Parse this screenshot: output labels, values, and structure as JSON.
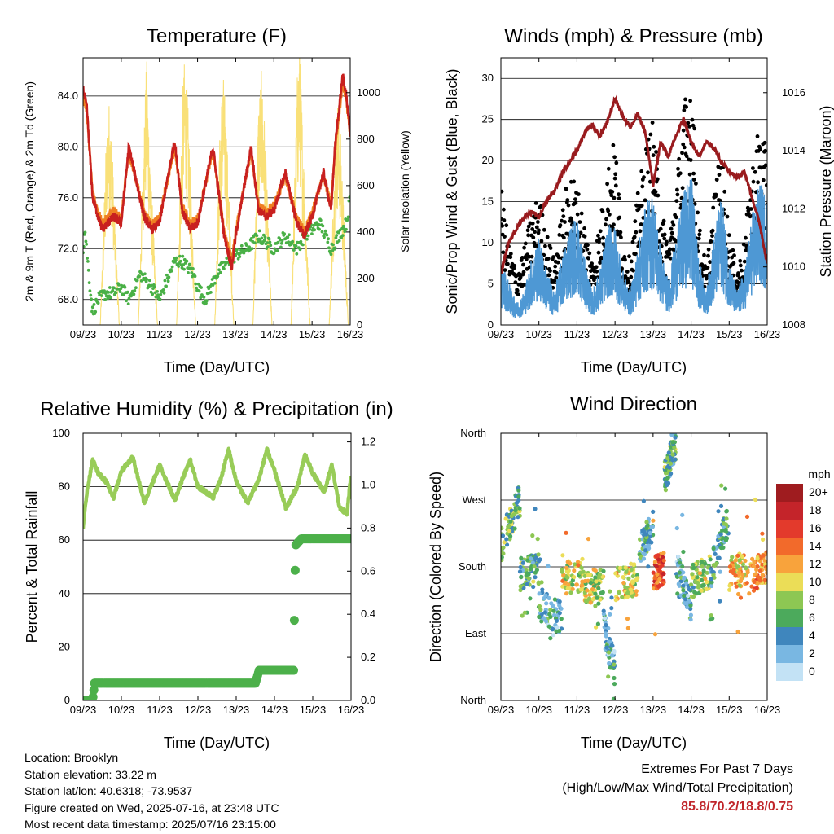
{
  "ticks_time": [
    "09/23",
    "10/23",
    "11/23",
    "12/23",
    "13/23",
    "14/23",
    "15/23",
    "16/23"
  ],
  "colors": {
    "t2m": "#c8201f",
    "t9m": "#ef7f22",
    "td": "#49b046",
    "sol": "#f9e078",
    "sonic": "#4e98d4",
    "gust": "#000000",
    "pres": "#991b1e",
    "rh": "#98cc58",
    "rain": "#4cb04a"
  },
  "panels": {
    "temp": {
      "title": "Temperature (F)",
      "ylabel": "2m & 9m T (Red, Orange) & 2m Td (Green)",
      "ylabel_right": "Solar Insolation (Yellow)",
      "xlabel": "Time (Day/UTC)",
      "yticks": [
        "68.0",
        "72.0",
        "76.0",
        "80.0",
        "84.0"
      ],
      "yticks_right": [
        "0",
        "200",
        "400",
        "600",
        "800",
        "1000"
      ]
    },
    "wind": {
      "title": "Winds (mph) & Pressure (mb)",
      "ylabel": "Sonic/Prop Wind & Gust (Blue, Black)",
      "ylabel_right": "Station Pressure (Maroon)",
      "xlabel": "Time (Day/UTC)",
      "yticks": [
        "0",
        "5",
        "10",
        "15",
        "20",
        "25",
        "30"
      ],
      "yticks_right": [
        "1008",
        "1010",
        "1012",
        "1014",
        "1016"
      ]
    },
    "rh": {
      "title": "Relative Humidity (%) & Precipitation (in)",
      "ylabel": "Percent & Total Rainfall",
      "xlabel": "Time (Day/UTC)",
      "yticks": [
        "0",
        "20",
        "40",
        "60",
        "80",
        "100"
      ],
      "yticks_right": [
        "0.0",
        "0.2",
        "0.4",
        "0.6",
        "0.8",
        "1.0",
        "1.2"
      ]
    },
    "dir": {
      "title": "Wind Direction",
      "ylabel": "Direction (Colored By Speed)",
      "xlabel": "Time (Day/UTC)",
      "yticks": [
        "North",
        "East",
        "South",
        "West",
        "North"
      ],
      "legend_title": "mph",
      "legend_labels": [
        "20+",
        "18",
        "16",
        "14",
        "12",
        "10",
        "8",
        "6",
        "4",
        "2",
        "0"
      ],
      "legend_colors": [
        "#9f1c1f",
        "#c4242a",
        "#e33a2c",
        "#f26a2b",
        "#f8a33c",
        "#ebdd57",
        "#8dc753",
        "#4caa5c",
        "#3f86bd",
        "#79b7e2",
        "#c3e2f5"
      ]
    }
  },
  "info": {
    "location": "Location: Brooklyn",
    "elevation": "Station elevation: 33.22 m",
    "latlon": "Station lat/lon: 40.6318; -73.9537",
    "created": "Figure created on Wed, 2025-07-16, at 23:48 UTC",
    "recent": "Most recent data timestamp: 2025/07/16 23:15:00"
  },
  "extremes": {
    "title": "Extremes For Past 7 Days",
    "subtitle": "(High/Low/Max Wind/Total Precipitation)",
    "values": "85.8/70.2/18.8/0.75"
  },
  "chart_data": [
    {
      "type": "line",
      "title": "Temperature (F)",
      "x_unit": "day since 09/23 00 UTC",
      "ylim": [
        66,
        87
      ],
      "ylim_right": [
        0,
        1150
      ],
      "series": [
        {
          "name": "2m T (Red)",
          "x": [
            0,
            0.1,
            0.25,
            0.5,
            0.8,
            1,
            1.2,
            1.6,
            1.8,
            2,
            2.4,
            2.6,
            2.8,
            3,
            3.4,
            3.7,
            3.9,
            4,
            4.4,
            4.6,
            4.8,
            5,
            5.3,
            5.6,
            5.8,
            6,
            6.3,
            6.5,
            6.6,
            6.8,
            6.9,
            7
          ],
          "y": [
            84.6,
            83,
            76,
            73.5,
            74.5,
            74,
            80,
            74.5,
            73.5,
            74,
            80.5,
            75,
            73.5,
            74,
            80,
            73,
            70.5,
            73,
            80,
            75,
            74.5,
            75,
            78,
            74,
            73,
            74.5,
            78,
            75,
            80,
            85.6,
            84,
            81
          ]
        },
        {
          "name": "9m T (Orange)",
          "x": [
            0,
            0.1,
            0.25,
            0.5,
            0.8,
            1,
            1.2,
            1.6,
            1.8,
            2,
            2.4,
            2.6,
            2.8,
            3,
            3.4,
            3.7,
            3.9,
            4,
            4.4,
            4.6,
            4.8,
            5,
            5.3,
            5.6,
            5.8,
            6,
            6.3,
            6.5,
            6.6,
            6.8,
            6.9,
            7
          ],
          "y": [
            84.3,
            82.7,
            76.3,
            74,
            75,
            74.4,
            79.6,
            74.9,
            73.9,
            74.4,
            80,
            75.4,
            73.9,
            74.4,
            79.6,
            73.4,
            71,
            73.4,
            79.6,
            75.4,
            74.9,
            75.4,
            77.7,
            74.4,
            73.4,
            74.9,
            77.7,
            75.4,
            79.6,
            85,
            83.6,
            80.7
          ]
        },
        {
          "name": "2m Td (Green)",
          "x": [
            0,
            0.05,
            0.15,
            0.25,
            0.4,
            0.6,
            0.8,
            1,
            1.2,
            1.5,
            1.8,
            2,
            2.4,
            2.6,
            2.9,
            3,
            3.2,
            3.5,
            3.8,
            4,
            4.3,
            4.6,
            5,
            5.3,
            5.6,
            5.8,
            6,
            6.2,
            6.5,
            6.7,
            6.9,
            7
          ],
          "y": [
            72,
            73.5,
            70,
            67,
            68,
            68.5,
            68.5,
            69,
            68,
            70,
            69,
            68,
            71,
            71,
            70,
            69,
            68,
            70,
            71,
            71.5,
            72,
            73,
            72,
            73,
            72,
            73,
            73.5,
            74,
            72,
            73,
            74,
            76
          ]
        },
        {
          "name": "Solar Insolation (Yellow)",
          "right_axis": true,
          "x": [
            0,
            0.45,
            0.6,
            0.67,
            0.75,
            0.95,
            1.45,
            1.6,
            1.67,
            1.75,
            1.95,
            2.45,
            2.6,
            2.67,
            2.75,
            2.95,
            3.45,
            3.6,
            3.67,
            3.75,
            3.95,
            4.45,
            4.6,
            4.67,
            4.75,
            4.95,
            5.45,
            5.6,
            5.67,
            5.75,
            5.95,
            6.45,
            6.6,
            6.67,
            6.75,
            6.95,
            7
          ],
          "y": [
            0,
            0,
            700,
            900,
            750,
            0,
            0,
            850,
            1050,
            700,
            0,
            0,
            900,
            1080,
            850,
            0,
            0,
            850,
            1000,
            820,
            0,
            0,
            900,
            1000,
            820,
            0,
            0,
            950,
            1150,
            800,
            0,
            0,
            700,
            900,
            750,
            0,
            0
          ]
        }
      ]
    },
    {
      "type": "line",
      "title": "Winds (mph) & Pressure (mb)",
      "x_unit": "day since 09/23 00 UTC",
      "ylim": [
        0,
        32.5
      ],
      "ylim_right": [
        1008,
        1017.2
      ],
      "series": [
        {
          "name": "Sonic/Prop Wind (Blue)",
          "x": [
            0,
            0.2,
            0.4,
            0.6,
            0.8,
            1,
            1.2,
            1.4,
            1.6,
            1.8,
            2,
            2.2,
            2.4,
            2.6,
            2.8,
            3,
            3.2,
            3.4,
            3.6,
            3.8,
            4,
            4.2,
            4.4,
            4.6,
            4.8,
            5,
            5.2,
            5.4,
            5.6,
            5.8,
            6,
            6.2,
            6.4,
            6.6,
            6.8,
            7
          ],
          "y": [
            6,
            4,
            2,
            3,
            6,
            8,
            5,
            3,
            6,
            9,
            10,
            6,
            3,
            5,
            9,
            9,
            5,
            3,
            7,
            11,
            12,
            7,
            4,
            8,
            12,
            14,
            6,
            3,
            8,
            12,
            6,
            3,
            5,
            10,
            13,
            12
          ]
        },
        {
          "name": "Gust (Black)",
          "x": [
            0,
            0.2,
            0.4,
            0.6,
            0.8,
            1,
            1.2,
            1.4,
            1.6,
            1.8,
            2,
            2.2,
            2.4,
            2.6,
            2.8,
            3,
            3.2,
            3.4,
            3.6,
            3.8,
            4,
            4.2,
            4.4,
            4.6,
            4.8,
            5,
            5.2,
            5.4,
            5.6,
            5.8,
            6,
            6.2,
            6.4,
            6.6,
            6.8,
            7
          ],
          "y": [
            15,
            9,
            6,
            8,
            12,
            14,
            10,
            7,
            12,
            17,
            15,
            11,
            7,
            11,
            17,
            20,
            9,
            7,
            14,
            19,
            22,
            13,
            9,
            15,
            23,
            29,
            11,
            6,
            14,
            19,
            10,
            6,
            9,
            17,
            22,
            18
          ]
        },
        {
          "name": "Station Pressure (Maroon)",
          "right_axis": true,
          "x": [
            0,
            0.2,
            0.4,
            0.6,
            0.8,
            1,
            1.2,
            1.4,
            1.6,
            1.8,
            2,
            2.2,
            2.4,
            2.6,
            2.8,
            3,
            3.2,
            3.4,
            3.6,
            3.8,
            4,
            4.2,
            4.4,
            4.6,
            4.8,
            5,
            5.2,
            5.4,
            5.6,
            5.8,
            6,
            6.2,
            6.4,
            6.6,
            6.8,
            7
          ],
          "y": [
            1009.8,
            1010.8,
            1011.3,
            1011.7,
            1011.9,
            1011.7,
            1012.3,
            1012.6,
            1013.2,
            1013.6,
            1014,
            1014.6,
            1014.9,
            1014.5,
            1015,
            1015.8,
            1015.2,
            1014.8,
            1015.3,
            1014.6,
            1012.8,
            1014.3,
            1013.8,
            1014.5,
            1015.1,
            1014.3,
            1013.8,
            1014.3,
            1014.1,
            1013.6,
            1013.3,
            1013.1,
            1013.3,
            1012.4,
            1011.5,
            1010.1
          ]
        }
      ]
    },
    {
      "type": "line",
      "title": "Relative Humidity (%) & Precipitation (in)",
      "x_unit": "day since 09/23 00 UTC",
      "ylim": [
        0,
        100
      ],
      "ylim_right": [
        0,
        1.24
      ],
      "series": [
        {
          "name": "Relative Humidity",
          "x": [
            0,
            0.1,
            0.25,
            0.4,
            0.6,
            0.8,
            1,
            1.3,
            1.6,
            1.8,
            2,
            2.4,
            2.6,
            2.8,
            3,
            3.4,
            3.6,
            3.8,
            4,
            4.3,
            4.6,
            4.8,
            5,
            5.3,
            5.6,
            5.8,
            6,
            6.3,
            6.5,
            6.7,
            6.9,
            7
          ],
          "y": [
            65,
            78,
            90,
            85,
            82,
            76,
            86,
            91,
            74,
            81,
            88,
            75,
            83,
            90,
            80,
            76,
            83,
            94,
            82,
            74,
            83,
            94,
            86,
            72,
            80,
            92,
            85,
            78,
            88,
            72,
            70,
            85
          ]
        },
        {
          "name": "Total Rainfall",
          "right_axis": true,
          "x": [
            0,
            0.25,
            0.3,
            1,
            2,
            3,
            4,
            4.5,
            4.6,
            5,
            5.5,
            5.55,
            5.7,
            6,
            7
          ],
          "y": [
            0,
            0,
            0.08,
            0.08,
            0.08,
            0.08,
            0.08,
            0.08,
            0.14,
            0.14,
            0.14,
            0.72,
            0.75,
            0.75,
            0.75
          ]
        }
      ]
    },
    {
      "type": "scatter",
      "title": "Wind Direction",
      "x_unit": "day since 09/23 00 UTC",
      "ylim": [
        0,
        360
      ],
      "ylim_labels": [
        "North",
        "East",
        "South",
        "West",
        "North"
      ],
      "color_by": "speed (mph)",
      "segments": [
        {
          "x0": 0,
          "x1": 0.5,
          "dir_from": 210,
          "dir_to": 270,
          "speed": 7
        },
        {
          "x0": 0.5,
          "x1": 1,
          "dir_from": 170,
          "dir_to": 175,
          "speed": 6
        },
        {
          "x0": 1,
          "x1": 1.6,
          "dir_from": 130,
          "dir_to": 110,
          "speed": 4
        },
        {
          "x0": 1.6,
          "x1": 2.2,
          "dir_from": 165,
          "dir_to": 170,
          "speed": 10
        },
        {
          "x0": 2.2,
          "x1": 2.7,
          "dir_from": 150,
          "dir_to": 160,
          "speed": 9
        },
        {
          "x0": 2.7,
          "x1": 3,
          "dir_from": 100,
          "dir_to": 40,
          "speed": 4
        },
        {
          "x0": 3,
          "x1": 3.6,
          "dir_from": 155,
          "dir_to": 165,
          "speed": 10
        },
        {
          "x0": 3.6,
          "x1": 4,
          "dir_from": 195,
          "dir_to": 240,
          "speed": 5
        },
        {
          "x0": 4,
          "x1": 4.3,
          "dir_from": 170,
          "dir_to": 180,
          "speed": 15
        },
        {
          "x0": 4.3,
          "x1": 4.6,
          "dir_from": 300,
          "dir_to": 345,
          "speed": 6
        },
        {
          "x0": 4.6,
          "x1": 5,
          "dir_from": 180,
          "dir_to": 130,
          "speed": 4
        },
        {
          "x0": 5,
          "x1": 5.5,
          "dir_from": 160,
          "dir_to": 175,
          "speed": 8
        },
        {
          "x0": 5.5,
          "x1": 6,
          "dir_from": 170,
          "dir_to": 250,
          "speed": 5
        },
        {
          "x0": 6,
          "x1": 6.5,
          "dir_from": 170,
          "dir_to": 180,
          "speed": 11
        },
        {
          "x0": 6.5,
          "x1": 7,
          "dir_from": 165,
          "dir_to": 180,
          "speed": 13
        }
      ]
    }
  ]
}
